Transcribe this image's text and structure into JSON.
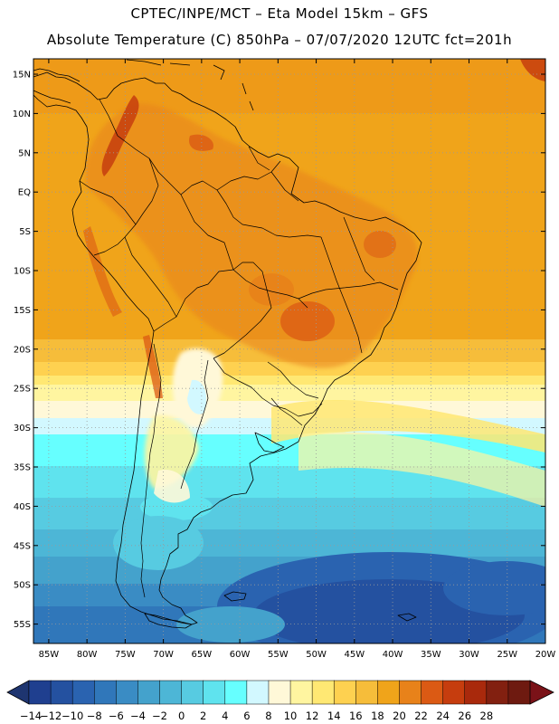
{
  "header": {
    "line1": "CPTEC/INPE/MCT –  Eta Model 15km – GFS",
    "line2": "Absolute Temperature (C) 850hPa – 07/07/2020 12UTC fct=201h"
  },
  "map": {
    "lat_labels": [
      "15N",
      "10N",
      "5N",
      "EQ",
      "5S",
      "10S",
      "15S",
      "20S",
      "25S",
      "30S",
      "35S",
      "40S",
      "45S",
      "50S",
      "55S"
    ],
    "lon_labels": [
      "85W",
      "80W",
      "75W",
      "70W",
      "65W",
      "60W",
      "55W",
      "50W",
      "45W",
      "40W",
      "35W",
      "30W",
      "25W",
      "20W"
    ]
  },
  "colorbar": {
    "labels": [
      "-14",
      "-12",
      "-10",
      "-8",
      "-6",
      "-4",
      "-2",
      "0",
      "2",
      "4",
      "6",
      "8",
      "10",
      "12",
      "14",
      "16",
      "18",
      "20",
      "22",
      "24",
      "26",
      "28"
    ],
    "colors": [
      "#1f3f8f",
      "#2451a0",
      "#2a63b0",
      "#3077ba",
      "#3a8cc4",
      "#44a2cc",
      "#4db6d6",
      "#57cbe1",
      "#5fe3ee",
      "#66ffff",
      "#d2f8ff",
      "#fff8d8",
      "#fff5a0",
      "#ffe873",
      "#fed150",
      "#f6bd3a",
      "#f0a41a",
      "#e8821a",
      "#db5a14",
      "#c63d0e",
      "#a9290c",
      "#822010",
      "#6e1a10"
    ]
  }
}
